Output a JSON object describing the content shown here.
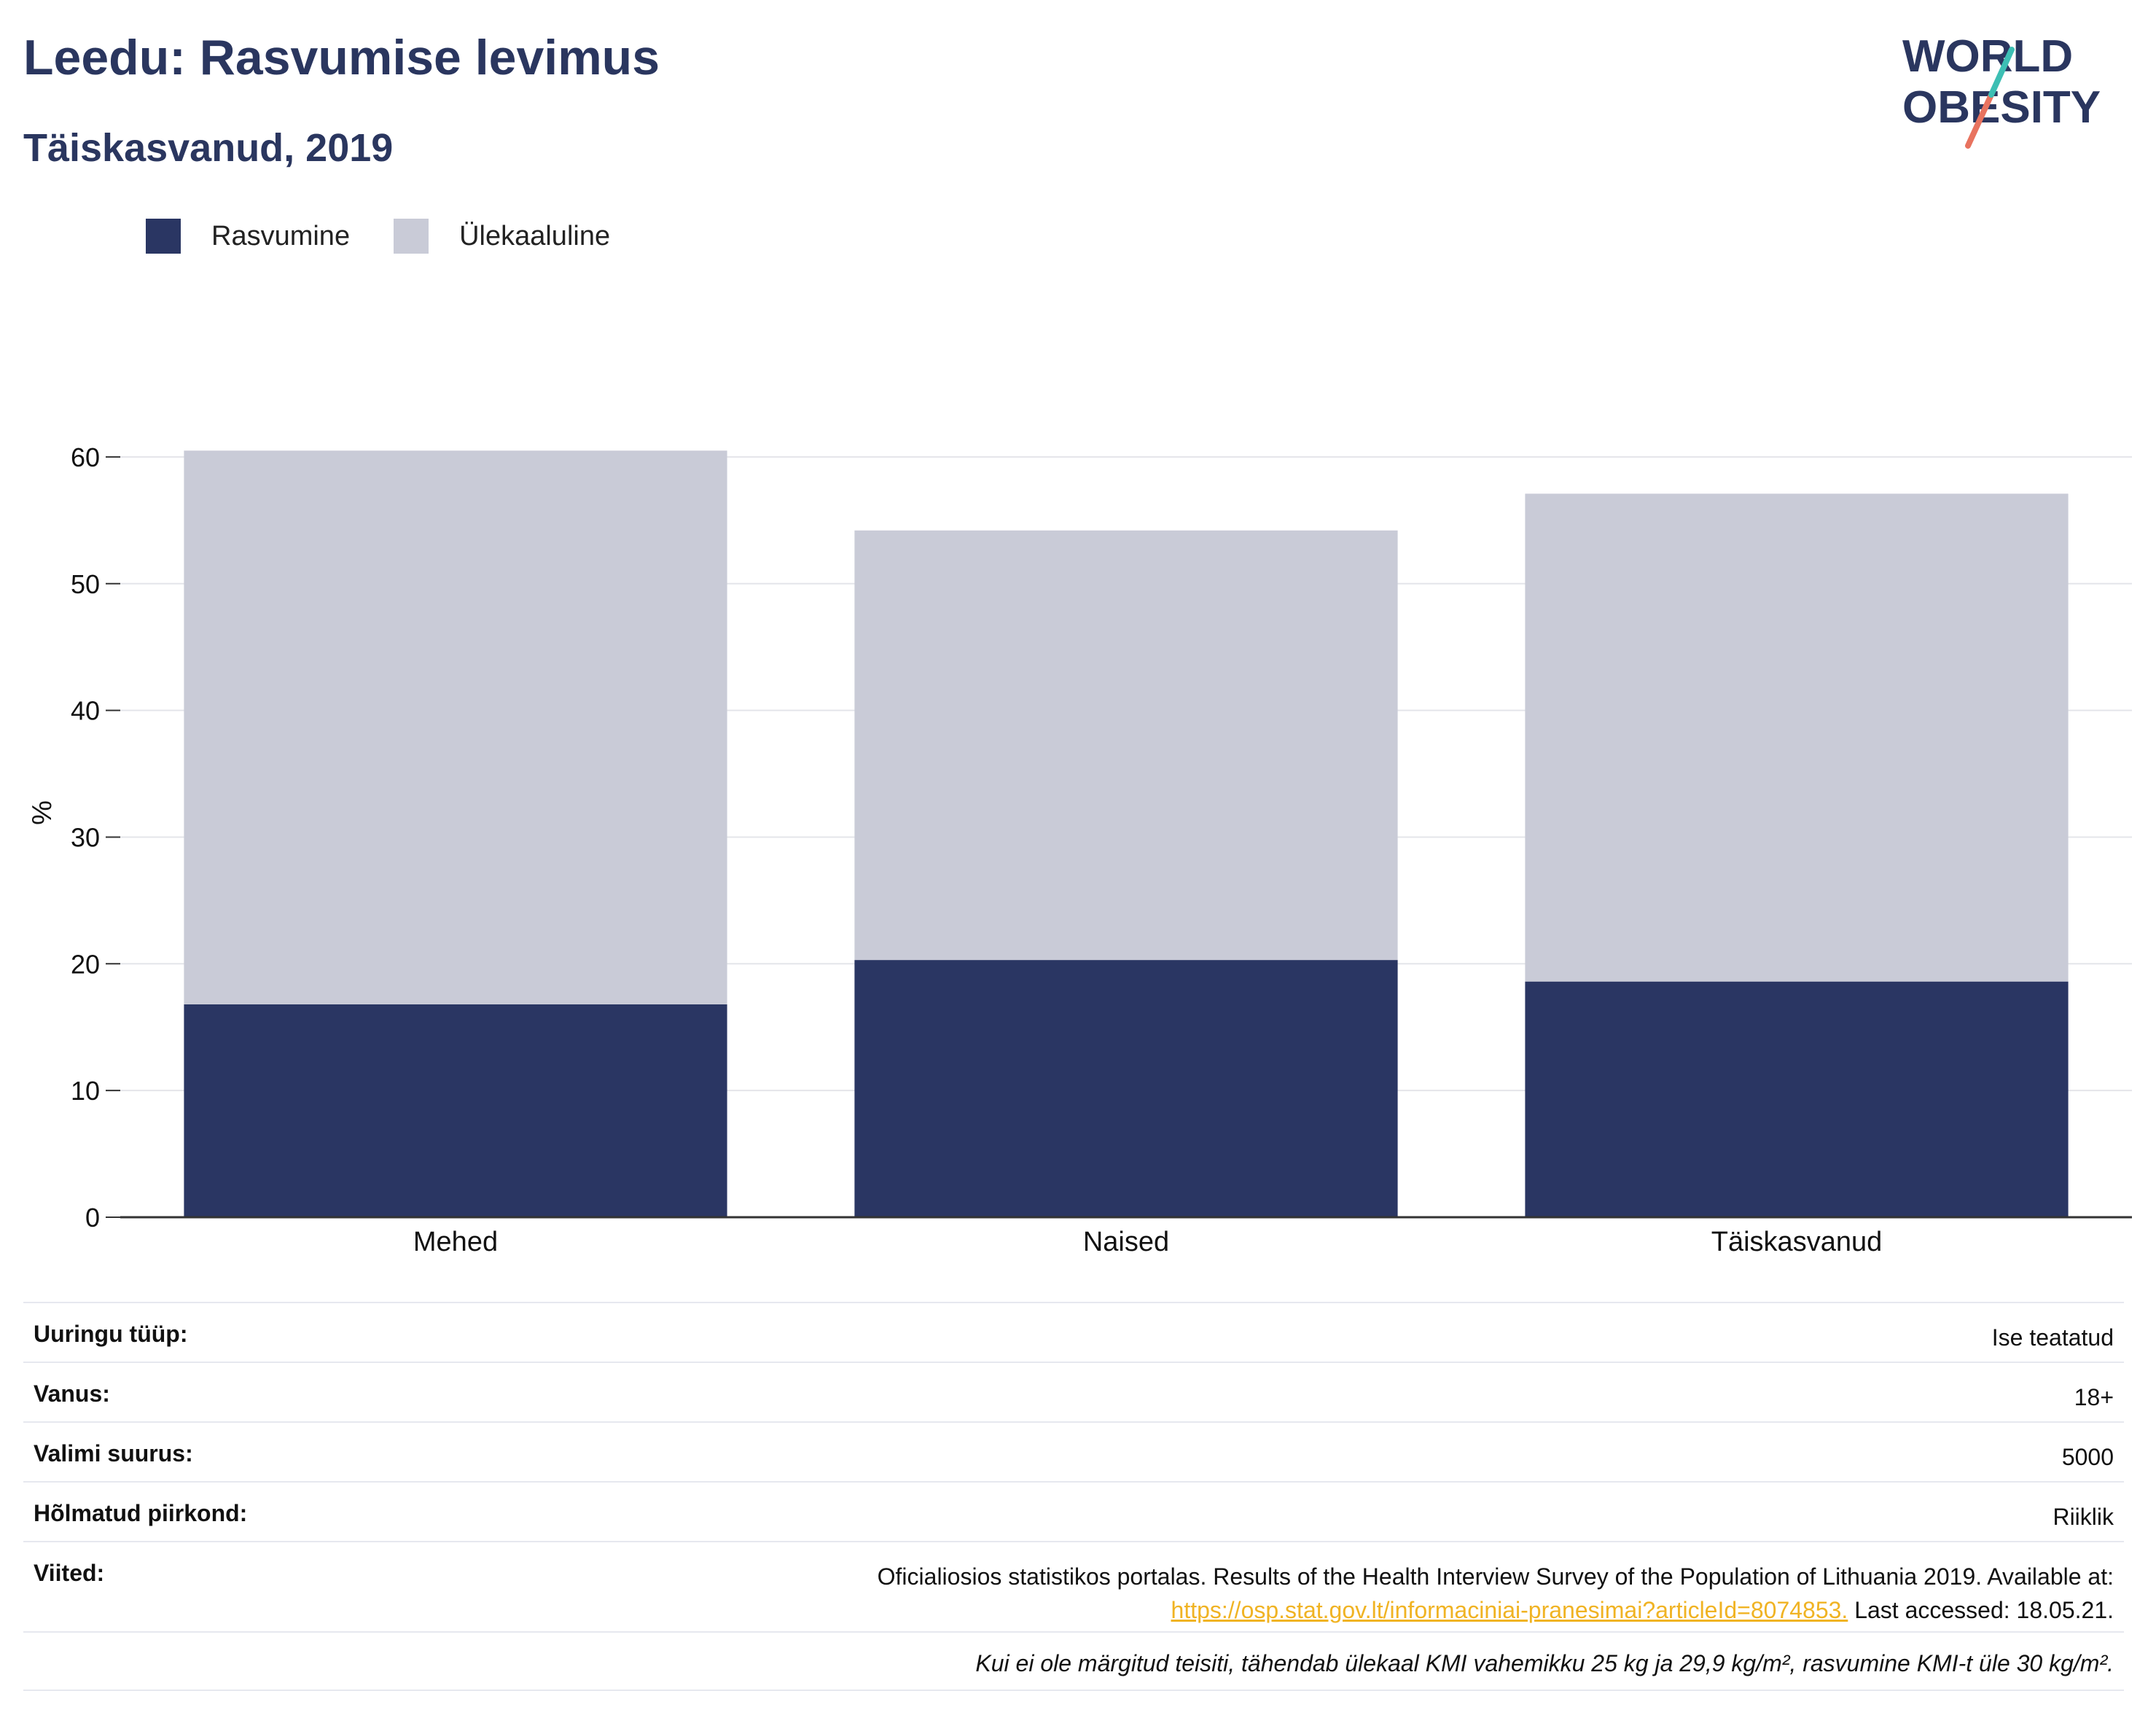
{
  "header": {
    "title": "Leedu: Rasvumise levimus",
    "subtitle": "Täiskasvanud, 2019"
  },
  "logo": {
    "line1": "WORLD",
    "line2": "OBESITY",
    "colors": {
      "text": "#2a365f",
      "teal": "#3dbfb4",
      "coral": "#e8735f"
    }
  },
  "legend": {
    "items": [
      {
        "label": "Rasvumine",
        "color": "#2a3663"
      },
      {
        "label": "Ülekaaluline",
        "color": "#c9cbd7"
      }
    ]
  },
  "chart_data": {
    "type": "bar",
    "stacked": true,
    "categories": [
      "Mehed",
      "Naised",
      "Täiskasvanud"
    ],
    "series": [
      {
        "name": "Rasvumine",
        "color": "#2a3663",
        "values": [
          16.8,
          20.3,
          18.6
        ]
      },
      {
        "name": "Ülekaaluline",
        "color": "#c9cbd7",
        "values": [
          43.7,
          33.9,
          38.5
        ]
      }
    ],
    "ylabel": "%",
    "xlabel": "",
    "ylim": [
      0,
      65
    ],
    "yticks": [
      0,
      10,
      20,
      30,
      40,
      50,
      60
    ],
    "grid": true,
    "legend_position": "top-left"
  },
  "info": {
    "survey_type": {
      "label": "Uuringu tüüp:",
      "value": "Ise teatatud"
    },
    "age": {
      "label": "Vanus:",
      "value": "18+"
    },
    "sample_size": {
      "label": "Valimi suurus:",
      "value": "5000"
    },
    "area": {
      "label": "Hõlmatud piirkond:",
      "value": "Riiklik"
    },
    "references": {
      "label": "Viited:",
      "line1": "Oficialiosios statistikos portalas. Results of the Health Interview Survey of the Population of Lithuania 2019. Available at:",
      "link": "https://osp.stat.gov.lt/informaciniai-pranesimai?articleId=8074853.",
      "accessed": " Last accessed: 18.05.21."
    },
    "note": "Kui ei ole märgitud teisiti, tähendab ülekaal KMI vahemikku 25 kg ja 29,9 kg/m², rasvumine KMI-t üle 30 kg/m²."
  }
}
